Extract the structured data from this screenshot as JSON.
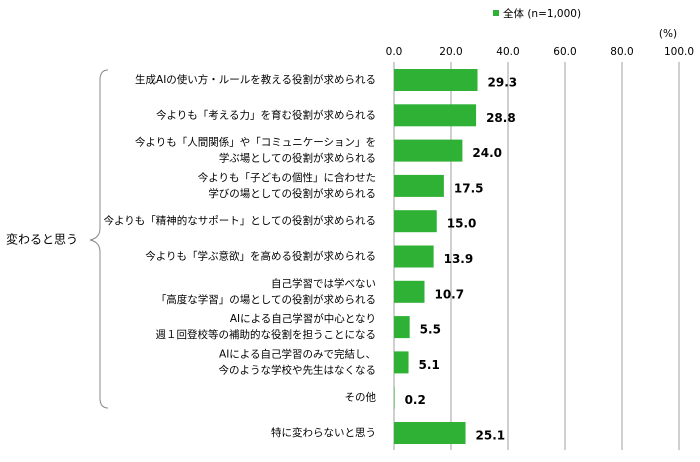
{
  "chart_data": {
    "type": "bar",
    "orientation": "horizontal",
    "categories": [
      "生成AIの使い方・ルールを教える役割が求められる",
      "今よりも「考える力」を育む役割が求められる",
      "今よりも「人間関係」や「コミュニケーション」を\n学ぶ場としての役割が求められる",
      "今よりも「子どもの個性」に合わせた\n学びの場としての役割が求められる",
      "今よりも「精神的なサポート」としての役割が求められる",
      "今よりも「学ぶ意欲」を高める役割が求められる",
      "自己学習では学べない\n「高度な学習」の場としての役割が求められる",
      "AIによる自己学習が中心となり\n週１回登校等の補助的な役割を担うことになる",
      "AIによる自己学習のみで完結し、\n今のような学校や先生はなくなる",
      "その他",
      "特に変わらないと思う"
    ],
    "series": [
      {
        "name": "全体 (n=1,000)",
        "color": "#2eb135",
        "values": [
          29.3,
          28.8,
          24.0,
          17.5,
          15.0,
          13.9,
          10.7,
          5.5,
          5.1,
          0.2,
          25.1
        ],
        "value_labels": [
          "29.3",
          "28.8",
          "24.0",
          "17.5",
          "15.0",
          "13.9",
          "10.7",
          "5.5",
          "5.1",
          "0.2",
          "25.1"
        ]
      }
    ],
    "group_label": "変わると思う",
    "x_label": "(%)",
    "xlim": [
      0,
      100
    ],
    "xticks": [
      {
        "value": 0,
        "label": "0.0"
      },
      {
        "value": 20,
        "label": "20.0"
      },
      {
        "value": 40,
        "label": "40.0"
      },
      {
        "value": 60,
        "label": "60.0"
      },
      {
        "value": 80,
        "label": "80.0"
      },
      {
        "value": 100,
        "label": "100.0"
      }
    ],
    "grid": true,
    "legend": "top"
  }
}
